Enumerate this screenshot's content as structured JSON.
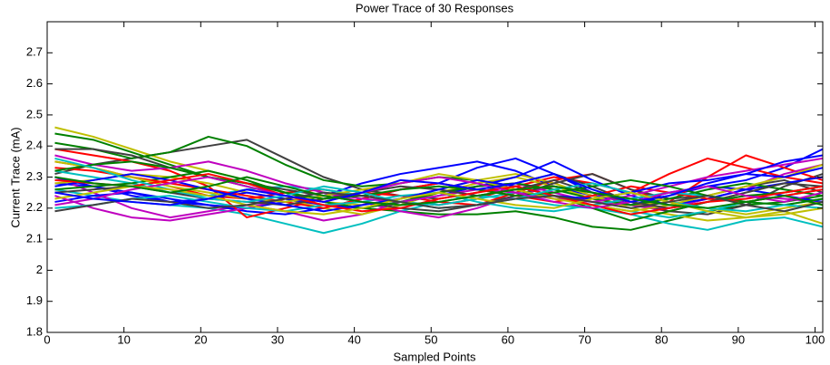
{
  "chart_data": {
    "type": "line",
    "title": "Power Trace of 30 Responses",
    "xlabel": "Sampled Points",
    "ylabel": "Current Trace (mA)",
    "x": [
      1,
      6,
      11,
      16,
      21,
      26,
      31,
      36,
      41,
      46,
      51,
      56,
      61,
      66,
      71,
      76,
      81,
      86,
      91,
      96,
      101
    ],
    "xlim": [
      0,
      101
    ],
    "xticks": [
      0,
      10,
      20,
      30,
      40,
      50,
      60,
      70,
      80,
      90,
      100
    ],
    "ylim": [
      1.8,
      2.8
    ],
    "yticks": [
      1.8,
      1.9,
      2,
      2.1,
      2.2,
      2.3,
      2.4,
      2.5,
      2.6,
      2.7
    ],
    "grid": false,
    "series": [
      {
        "color": "#0000ff",
        "values": [
          2.28,
          2.27,
          2.25,
          2.22,
          2.21,
          2.2,
          2.22,
          2.24,
          2.28,
          2.31,
          2.33,
          2.35,
          2.32,
          2.27,
          2.24,
          2.22,
          2.25,
          2.27,
          2.29,
          2.33,
          2.39
        ]
      },
      {
        "color": "#008000",
        "values": [
          2.44,
          2.42,
          2.38,
          2.34,
          2.3,
          2.27,
          2.24,
          2.22,
          2.2,
          2.19,
          2.18,
          2.18,
          2.19,
          2.17,
          2.14,
          2.13,
          2.16,
          2.19,
          2.21,
          2.22,
          2.24
        ]
      },
      {
        "color": "#ff0000",
        "values": [
          2.35,
          2.33,
          2.3,
          2.27,
          2.24,
          2.23,
          2.25,
          2.26,
          2.24,
          2.22,
          2.21,
          2.23,
          2.27,
          2.3,
          2.28,
          2.25,
          2.31,
          2.36,
          2.33,
          2.3,
          2.28
        ]
      },
      {
        "color": "#00bfbf",
        "values": [
          2.26,
          2.24,
          2.22,
          2.21,
          2.2,
          2.18,
          2.15,
          2.12,
          2.15,
          2.19,
          2.22,
          2.24,
          2.23,
          2.21,
          2.2,
          2.18,
          2.15,
          2.13,
          2.16,
          2.17,
          2.14
        ]
      },
      {
        "color": "#bf00bf",
        "values": [
          2.3,
          2.25,
          2.2,
          2.17,
          2.19,
          2.21,
          2.19,
          2.16,
          2.18,
          2.22,
          2.25,
          2.27,
          2.28,
          2.25,
          2.22,
          2.21,
          2.19,
          2.22,
          2.24,
          2.23,
          2.22
        ]
      },
      {
        "color": "#bfbf00",
        "values": [
          2.46,
          2.43,
          2.39,
          2.35,
          2.32,
          2.29,
          2.25,
          2.22,
          2.21,
          2.23,
          2.26,
          2.29,
          2.31,
          2.28,
          2.24,
          2.2,
          2.18,
          2.16,
          2.17,
          2.19,
          2.15
        ]
      },
      {
        "color": "#404040",
        "values": [
          2.31,
          2.34,
          2.36,
          2.38,
          2.4,
          2.42,
          2.36,
          2.3,
          2.26,
          2.24,
          2.23,
          2.25,
          2.28,
          2.31,
          2.27,
          2.22,
          2.19,
          2.18,
          2.21,
          2.27,
          2.31
        ]
      },
      {
        "color": "#0000ff",
        "values": [
          2.22,
          2.24,
          2.25,
          2.23,
          2.21,
          2.19,
          2.18,
          2.2,
          2.23,
          2.26,
          2.28,
          2.33,
          2.36,
          2.31,
          2.25,
          2.21,
          2.24,
          2.27,
          2.26,
          2.24,
          2.22
        ]
      },
      {
        "color": "#008000",
        "values": [
          2.41,
          2.39,
          2.36,
          2.38,
          2.43,
          2.4,
          2.34,
          2.29,
          2.27,
          2.28,
          2.3,
          2.29,
          2.27,
          2.24,
          2.2,
          2.16,
          2.19,
          2.22,
          2.24,
          2.25,
          2.27
        ]
      },
      {
        "color": "#ff0000",
        "values": [
          2.39,
          2.37,
          2.35,
          2.32,
          2.27,
          2.17,
          2.2,
          2.23,
          2.25,
          2.24,
          2.22,
          2.21,
          2.25,
          2.29,
          2.31,
          2.26,
          2.22,
          2.3,
          2.37,
          2.33,
          2.29
        ]
      },
      {
        "color": "#00bfbf",
        "values": [
          2.32,
          2.3,
          2.28,
          2.25,
          2.24,
          2.26,
          2.27,
          2.26,
          2.24,
          2.22,
          2.21,
          2.23,
          2.25,
          2.24,
          2.21,
          2.19,
          2.17,
          2.19,
          2.22,
          2.24,
          2.26
        ]
      },
      {
        "color": "#bf00bf",
        "values": [
          2.24,
          2.2,
          2.17,
          2.16,
          2.18,
          2.2,
          2.23,
          2.25,
          2.22,
          2.19,
          2.17,
          2.2,
          2.24,
          2.27,
          2.25,
          2.21,
          2.2,
          2.23,
          2.26,
          2.31,
          2.34
        ]
      },
      {
        "color": "#bfbf00",
        "values": [
          2.28,
          2.29,
          2.31,
          2.3,
          2.28,
          2.25,
          2.23,
          2.2,
          2.18,
          2.21,
          2.25,
          2.28,
          2.3,
          2.27,
          2.23,
          2.21,
          2.22,
          2.2,
          2.18,
          2.2,
          2.22
        ]
      },
      {
        "color": "#404040",
        "values": [
          2.39,
          2.39,
          2.37,
          2.33,
          2.3,
          2.28,
          2.26,
          2.24,
          2.22,
          2.2,
          2.19,
          2.21,
          2.24,
          2.28,
          2.31,
          2.26,
          2.23,
          2.24,
          2.27,
          2.29,
          2.25
        ]
      },
      {
        "color": "#0000ff",
        "values": [
          2.3,
          2.27,
          2.24,
          2.22,
          2.23,
          2.25,
          2.23,
          2.21,
          2.2,
          2.22,
          2.24,
          2.27,
          2.3,
          2.35,
          2.29,
          2.24,
          2.21,
          2.23,
          2.26,
          2.28,
          2.3
        ]
      },
      {
        "color": "#008000",
        "values": [
          2.26,
          2.27,
          2.28,
          2.3,
          2.32,
          2.29,
          2.25,
          2.22,
          2.2,
          2.22,
          2.25,
          2.27,
          2.28,
          2.26,
          2.23,
          2.21,
          2.23,
          2.26,
          2.28,
          2.26,
          2.24
        ]
      },
      {
        "color": "#ff0000",
        "values": [
          2.33,
          2.32,
          2.3,
          2.28,
          2.26,
          2.24,
          2.22,
          2.2,
          2.23,
          2.26,
          2.28,
          2.26,
          2.24,
          2.22,
          2.24,
          2.27,
          2.25,
          2.23,
          2.22,
          2.24,
          2.26
        ]
      },
      {
        "color": "#00bfbf",
        "values": [
          2.2,
          2.21,
          2.23,
          2.24,
          2.22,
          2.2,
          2.19,
          2.21,
          2.22,
          2.24,
          2.25,
          2.22,
          2.2,
          2.19,
          2.21,
          2.23,
          2.25,
          2.24,
          2.22,
          2.21,
          2.23
        ]
      },
      {
        "color": "#bf00bf",
        "values": [
          2.37,
          2.34,
          2.32,
          2.33,
          2.35,
          2.32,
          2.28,
          2.25,
          2.23,
          2.22,
          2.24,
          2.26,
          2.25,
          2.23,
          2.22,
          2.24,
          2.27,
          2.3,
          2.32,
          2.34,
          2.36
        ]
      },
      {
        "color": "#bfbf00",
        "values": [
          2.35,
          2.33,
          2.3,
          2.27,
          2.25,
          2.23,
          2.22,
          2.24,
          2.26,
          2.28,
          2.31,
          2.29,
          2.26,
          2.23,
          2.21,
          2.19,
          2.21,
          2.24,
          2.27,
          2.3,
          2.34
        ]
      },
      {
        "color": "#404040",
        "values": [
          2.25,
          2.26,
          2.27,
          2.25,
          2.23,
          2.22,
          2.21,
          2.23,
          2.25,
          2.27,
          2.26,
          2.24,
          2.26,
          2.29,
          2.25,
          2.22,
          2.2,
          2.22,
          2.25,
          2.28,
          2.27
        ]
      },
      {
        "color": "#0000ff",
        "values": [
          2.27,
          2.29,
          2.31,
          2.29,
          2.26,
          2.23,
          2.21,
          2.19,
          2.21,
          2.23,
          2.26,
          2.29,
          2.27,
          2.24,
          2.23,
          2.25,
          2.28,
          2.29,
          2.31,
          2.3,
          2.33
        ]
      },
      {
        "color": "#008000",
        "values": [
          2.32,
          2.34,
          2.35,
          2.33,
          2.3,
          2.28,
          2.25,
          2.23,
          2.24,
          2.26,
          2.27,
          2.26,
          2.24,
          2.25,
          2.27,
          2.29,
          2.27,
          2.24,
          2.22,
          2.21,
          2.23
        ]
      },
      {
        "color": "#ff0000",
        "values": [
          2.29,
          2.28,
          2.27,
          2.29,
          2.31,
          2.28,
          2.24,
          2.21,
          2.19,
          2.2,
          2.23,
          2.25,
          2.27,
          2.24,
          2.21,
          2.18,
          2.2,
          2.22,
          2.23,
          2.25,
          2.27
        ]
      },
      {
        "color": "#00bfbf",
        "values": [
          2.36,
          2.33,
          2.29,
          2.26,
          2.23,
          2.22,
          2.24,
          2.27,
          2.25,
          2.22,
          2.2,
          2.21,
          2.23,
          2.26,
          2.28,
          2.25,
          2.22,
          2.2,
          2.19,
          2.21,
          2.2
        ]
      },
      {
        "color": "#bf00bf",
        "values": [
          2.21,
          2.23,
          2.26,
          2.28,
          2.3,
          2.27,
          2.24,
          2.22,
          2.25,
          2.28,
          2.3,
          2.28,
          2.25,
          2.22,
          2.2,
          2.22,
          2.25,
          2.27,
          2.24,
          2.22,
          2.25
        ]
      },
      {
        "color": "#bfbf00",
        "values": [
          2.23,
          2.25,
          2.27,
          2.26,
          2.24,
          2.21,
          2.19,
          2.18,
          2.2,
          2.23,
          2.25,
          2.23,
          2.21,
          2.2,
          2.23,
          2.25,
          2.22,
          2.19,
          2.17,
          2.18,
          2.2
        ]
      },
      {
        "color": "#404040",
        "values": [
          2.19,
          2.21,
          2.23,
          2.22,
          2.2,
          2.21,
          2.23,
          2.25,
          2.24,
          2.22,
          2.2,
          2.21,
          2.23,
          2.24,
          2.22,
          2.2,
          2.22,
          2.24,
          2.21,
          2.19,
          2.22
        ]
      },
      {
        "color": "#0000ff",
        "values": [
          2.25,
          2.23,
          2.22,
          2.21,
          2.23,
          2.26,
          2.24,
          2.22,
          2.25,
          2.29,
          2.28,
          2.26,
          2.28,
          2.31,
          2.26,
          2.22,
          2.24,
          2.28,
          2.31,
          2.35,
          2.37
        ]
      },
      {
        "color": "#008000",
        "values": [
          2.3,
          2.28,
          2.27,
          2.25,
          2.27,
          2.3,
          2.27,
          2.24,
          2.22,
          2.21,
          2.22,
          2.24,
          2.26,
          2.27,
          2.25,
          2.23,
          2.21,
          2.2,
          2.22,
          2.24,
          2.21
        ]
      }
    ]
  }
}
